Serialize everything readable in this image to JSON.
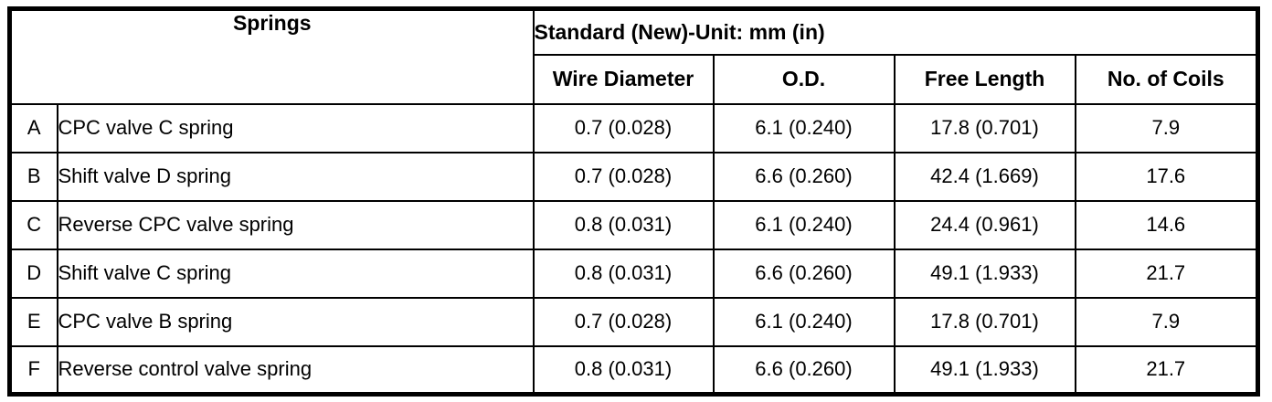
{
  "table": {
    "springs_header": "Springs",
    "standard_header": "Standard (New)-Unit: mm (in)",
    "columns": [
      {
        "label": "Wire Diameter"
      },
      {
        "label": "O.D."
      },
      {
        "label": "Free Length"
      },
      {
        "label": "No. of Coils"
      }
    ],
    "rows": [
      {
        "id": "A",
        "name": "CPC valve C spring",
        "wire_diameter": "0.7 (0.028)",
        "od": "6.1 (0.240)",
        "free_length": "17.8 (0.701)",
        "coils": "7.9"
      },
      {
        "id": "B",
        "name": "Shift valve D spring",
        "wire_diameter": "0.7 (0.028)",
        "od": "6.6 (0.260)",
        "free_length": "42.4 (1.669)",
        "coils": "17.6"
      },
      {
        "id": "C",
        "name": "Reverse CPC valve spring",
        "wire_diameter": "0.8 (0.031)",
        "od": "6.1 (0.240)",
        "free_length": "24.4 (0.961)",
        "coils": "14.6"
      },
      {
        "id": "D",
        "name": "Shift valve C spring",
        "wire_diameter": "0.8 (0.031)",
        "od": "6.6 (0.260)",
        "free_length": "49.1 (1.933)",
        "coils": "21.7"
      },
      {
        "id": "E",
        "name": "CPC valve B spring",
        "wire_diameter": "0.7 (0.028)",
        "od": "6.1 (0.240)",
        "free_length": "17.8 (0.701)",
        "coils": "7.9"
      },
      {
        "id": "F",
        "name": "Reverse control valve spring",
        "wire_diameter": "0.8 (0.031)",
        "od": "6.6 (0.260)",
        "free_length": "49.1 (1.933)",
        "coils": "21.7"
      }
    ],
    "colors": {
      "border": "#000000",
      "background": "#ffffff",
      "text": "#000000"
    }
  }
}
